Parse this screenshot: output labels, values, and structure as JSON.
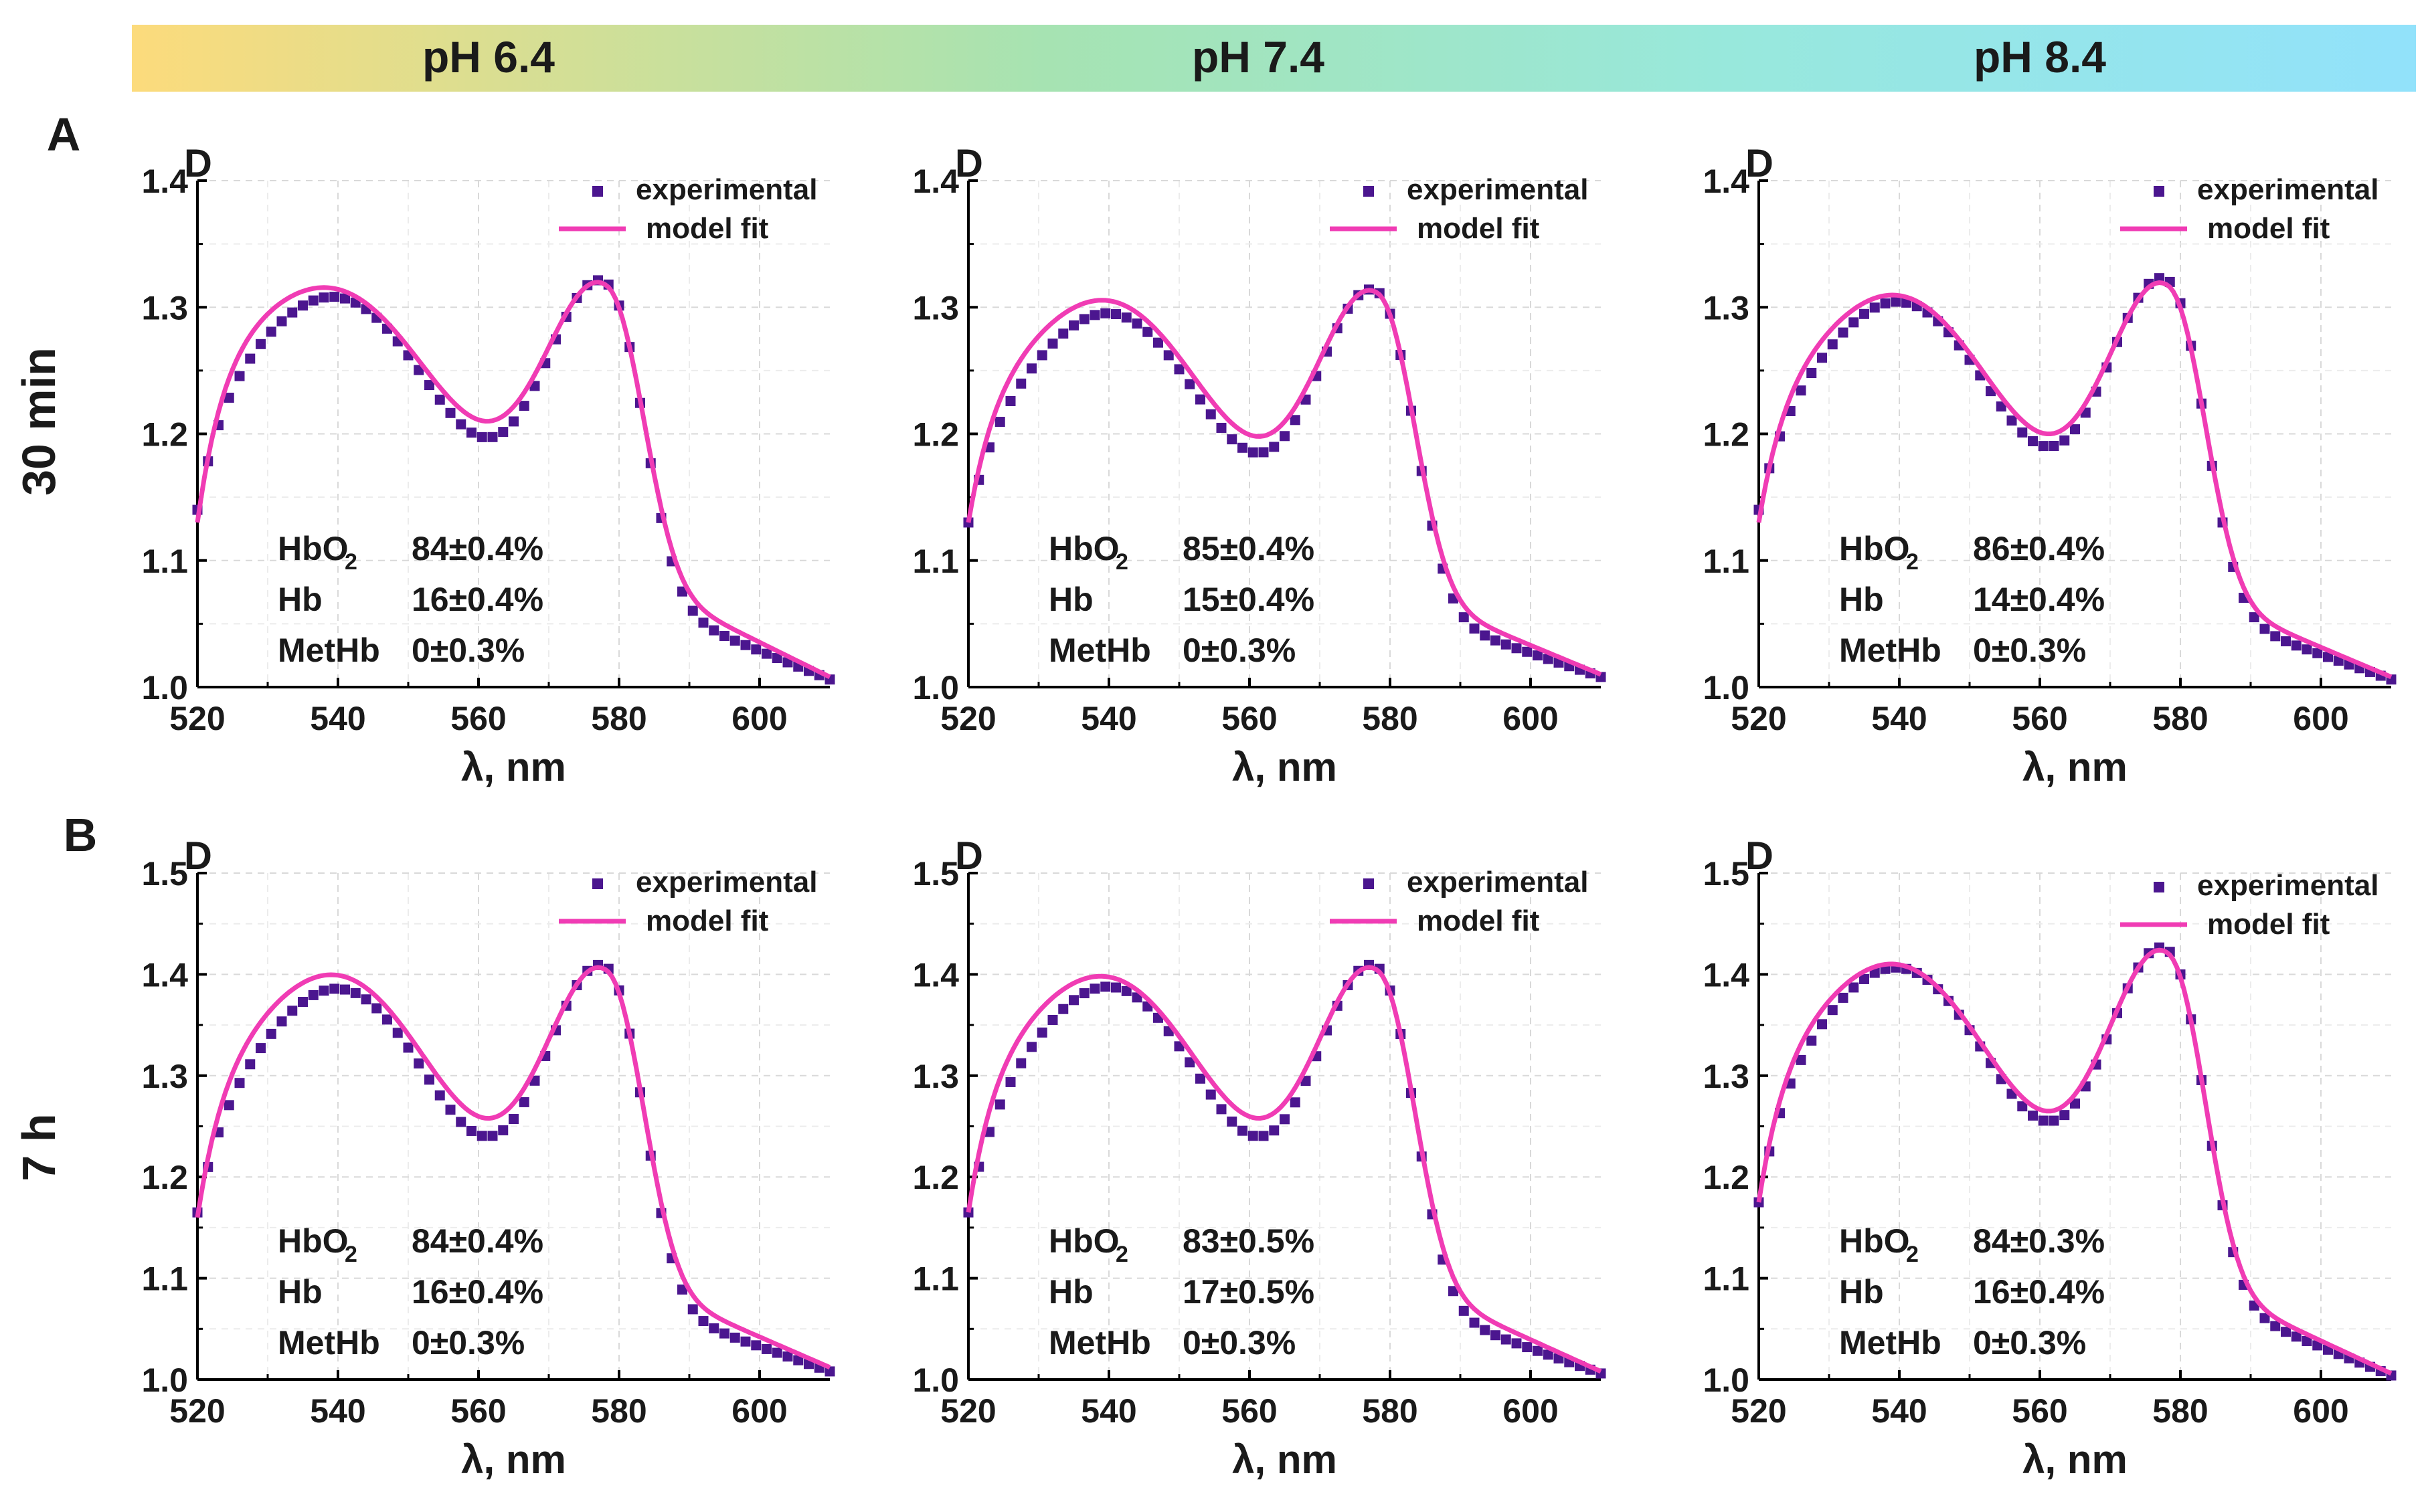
{
  "header": {
    "labels": [
      "pH 6.4",
      "pH 7.4",
      "pH 8.4"
    ]
  },
  "rows": [
    {
      "letter": "A",
      "time_label": "30 min"
    },
    {
      "letter": "B",
      "time_label": "7 h"
    }
  ],
  "colors": {
    "experimental": "#4b168f",
    "model_fit": "#f03cb4",
    "gradient": [
      "#fcdb7c",
      "#a6e3b2",
      "#98e8dc",
      "#92e2fb"
    ]
  },
  "legend": {
    "experimental": "experimental",
    "model_fit": "model fit"
  },
  "chart_data": [
    {
      "type": "line+scatter",
      "panel": "A-pH6.4",
      "row": 0,
      "col": 0,
      "title": "",
      "xlabel": "λ, nm",
      "ylabel": "D",
      "xlim": [
        520,
        610
      ],
      "ylim": [
        1.0,
        1.4
      ],
      "yticks": [
        "1.0",
        "1.1",
        "1.2",
        "1.3",
        "1.4"
      ],
      "xticks": [
        "520",
        "540",
        "560",
        "580",
        "600"
      ],
      "peak1": 1.305,
      "trough": 1.197,
      "peak2": 1.32,
      "start": 1.14,
      "end": 1.006,
      "fit_peak1": 1.31,
      "fit_trough": 1.21,
      "fit_peak2": 1.318,
      "fit_start": 1.13,
      "fit_end": 1.008,
      "components": [
        {
          "name": "HbO2",
          "sub": "2",
          "label": "HbO",
          "value": "84±0.4%"
        },
        {
          "name": "Hb",
          "label": "Hb",
          "value": "16±0.4%"
        },
        {
          "name": "MetHb",
          "label": "MetHb",
          "value": "0±0.3%"
        }
      ]
    },
    {
      "type": "line+scatter",
      "panel": "A-pH7.4",
      "row": 0,
      "col": 1,
      "title": "",
      "xlabel": "λ, nm",
      "ylabel": "D",
      "xlim": [
        520,
        610
      ],
      "ylim": [
        1.0,
        1.4
      ],
      "yticks": [
        "1.0",
        "1.1",
        "1.2",
        "1.3",
        "1.4"
      ],
      "xticks": [
        "520",
        "540",
        "560",
        "580",
        "600"
      ],
      "peak1": 1.293,
      "trough": 1.185,
      "peak2": 1.313,
      "start": 1.13,
      "end": 1.008,
      "fit_peak1": 1.302,
      "fit_trough": 1.198,
      "fit_peak2": 1.312,
      "fit_start": 1.13,
      "fit_end": 1.01,
      "components": [
        {
          "name": "HbO2",
          "label": "HbO",
          "value": "85±0.4%"
        },
        {
          "name": "Hb",
          "label": "Hb",
          "value": "15±0.4%"
        },
        {
          "name": "MetHb",
          "label": "MetHb",
          "value": "0±0.3%"
        }
      ]
    },
    {
      "type": "line+scatter",
      "panel": "A-pH8.4",
      "row": 0,
      "col": 2,
      "title": "",
      "xlabel": "λ, nm",
      "ylabel": "D",
      "xlim": [
        520,
        610
      ],
      "ylim": [
        1.0,
        1.4
      ],
      "yticks": [
        "1.0",
        "1.1",
        "1.2",
        "1.3",
        "1.4"
      ],
      "xticks": [
        "520",
        "540",
        "560",
        "580",
        "600"
      ],
      "peak1": 1.302,
      "trough": 1.19,
      "peak2": 1.322,
      "start": 1.14,
      "end": 1.006,
      "fit_peak1": 1.306,
      "fit_trough": 1.2,
      "fit_peak2": 1.318,
      "fit_start": 1.13,
      "fit_end": 1.008,
      "components": [
        {
          "name": "HbO2",
          "label": "HbO",
          "value": "86±0.4%"
        },
        {
          "name": "Hb",
          "label": "Hb",
          "value": "14±0.4%"
        },
        {
          "name": "MetHb",
          "label": "MetHb",
          "value": "0±0.3%"
        }
      ]
    },
    {
      "type": "line+scatter",
      "panel": "B-pH6.4",
      "row": 1,
      "col": 0,
      "title": "",
      "xlabel": "λ, nm",
      "ylabel": "D",
      "xlim": [
        520,
        610
      ],
      "ylim": [
        1.0,
        1.5
      ],
      "yticks": [
        "1.0",
        "1.1",
        "1.2",
        "1.3",
        "1.4",
        "1.5"
      ],
      "xticks": [
        "520",
        "540",
        "560",
        "580",
        "600"
      ],
      "peak1": 1.383,
      "trough": 1.24,
      "peak2": 1.408,
      "start": 1.165,
      "end": 1.008,
      "fit_peak1": 1.395,
      "fit_trough": 1.258,
      "fit_peak2": 1.405,
      "fit_start": 1.16,
      "fit_end": 1.012,
      "components": [
        {
          "name": "HbO2",
          "label": "HbO",
          "value": "84±0.4%"
        },
        {
          "name": "Hb",
          "label": "Hb",
          "value": "16±0.4%"
        },
        {
          "name": "MetHb",
          "label": "MetHb",
          "value": "0±0.3%"
        }
      ]
    },
    {
      "type": "line+scatter",
      "panel": "B-pH7.4",
      "row": 1,
      "col": 1,
      "title": "",
      "xlabel": "λ, nm",
      "ylabel": "D",
      "xlim": [
        520,
        610
      ],
      "ylim": [
        1.0,
        1.5
      ],
      "yticks": [
        "1.0",
        "1.1",
        "1.2",
        "1.3",
        "1.4",
        "1.5"
      ],
      "xticks": [
        "520",
        "540",
        "560",
        "580",
        "600"
      ],
      "peak1": 1.385,
      "trough": 1.24,
      "peak2": 1.408,
      "start": 1.165,
      "end": 1.006,
      "fit_peak1": 1.393,
      "fit_trough": 1.258,
      "fit_peak2": 1.405,
      "fit_start": 1.165,
      "fit_end": 1.008,
      "components": [
        {
          "name": "HbO2",
          "label": "HbO",
          "value": "83±0.5%"
        },
        {
          "name": "Hb",
          "label": "Hb",
          "value": "17±0.5%"
        },
        {
          "name": "MetHb",
          "label": "MetHb",
          "value": "0±0.3%"
        }
      ]
    },
    {
      "type": "line+scatter",
      "panel": "B-pH8.4",
      "row": 1,
      "col": 2,
      "title": "",
      "xlabel": "λ, nm",
      "ylabel": "D",
      "xlim": [
        520,
        610
      ],
      "ylim": [
        1.0,
        1.5
      ],
      "yticks": [
        "1.0",
        "1.1",
        "1.2",
        "1.3",
        "1.4",
        "1.5"
      ],
      "xticks": [
        "520",
        "540",
        "560",
        "580",
        "600"
      ],
      "peak1": 1.403,
      "trough": 1.255,
      "peak2": 1.425,
      "start": 1.175,
      "end": 1.004,
      "fit_peak1": 1.405,
      "fit_trough": 1.265,
      "fit_peak2": 1.422,
      "fit_start": 1.175,
      "fit_end": 1.006,
      "components": [
        {
          "name": "HbO2",
          "label": "HbO",
          "value": "84±0.3%"
        },
        {
          "name": "Hb",
          "label": "Hb",
          "value": "16±0.4%"
        },
        {
          "name": "MetHb",
          "label": "MetHb",
          "value": "0±0.3%"
        }
      ]
    }
  ]
}
